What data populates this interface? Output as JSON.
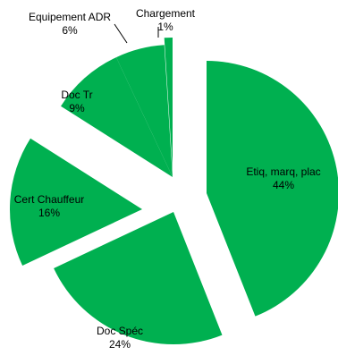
{
  "chart_data": {
    "type": "pie",
    "exploded": true,
    "slice_color": "#00b050",
    "background": "#ffffff",
    "slices": [
      {
        "label": "Etiq, marq, plac",
        "value": 44,
        "value_label": "44%"
      },
      {
        "label": "Doc Spéc",
        "value": 24,
        "value_label": "24%"
      },
      {
        "label": "Cert Chauffeur",
        "value": 16,
        "value_label": "16%"
      },
      {
        "label": "Doc Tr",
        "value": 9,
        "value_label": "9%"
      },
      {
        "label": "Equipement ADR",
        "value": 6,
        "value_label": "6%"
      },
      {
        "label": "Chargement",
        "value": 1,
        "value_label": "1%"
      }
    ],
    "legend": "none"
  }
}
